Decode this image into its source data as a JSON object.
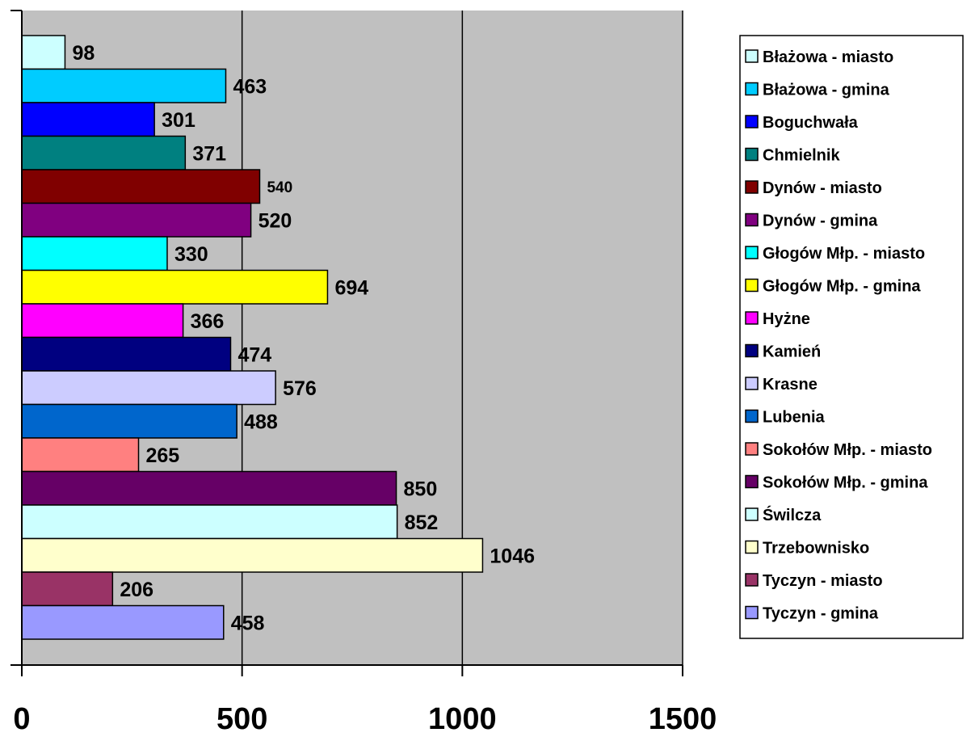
{
  "chart_data": {
    "type": "bar",
    "orientation": "horizontal",
    "title": "",
    "xlabel": "",
    "ylabel": "",
    "xlim": [
      0,
      1500
    ],
    "x_ticks": [
      "0",
      "500",
      "1000",
      "1500"
    ],
    "grid": true,
    "plot_background": "#c0c0c0",
    "legend_position": "right",
    "series": [
      {
        "name": "Błażowa - miasto",
        "value": 98,
        "label": "98",
        "color": "#ccffff"
      },
      {
        "name": "Błażowa - gmina",
        "value": 463,
        "label": "463",
        "color": "#00ccff"
      },
      {
        "name": "Boguchwała",
        "value": 301,
        "label": "301",
        "color": "#0000ff"
      },
      {
        "name": "Chmielnik",
        "value": 371,
        "label": "371",
        "color": "#008080"
      },
      {
        "name": "Dynów - miasto",
        "value": 540,
        "label": "540",
        "color": "#800000"
      },
      {
        "name": "Dynów - gmina",
        "value": 520,
        "label": "520",
        "color": "#800080"
      },
      {
        "name": "Głogów Młp. - miasto",
        "value": 330,
        "label": "330",
        "color": "#00ffff"
      },
      {
        "name": "Głogów Młp. - gmina",
        "value": 694,
        "label": "694",
        "color": "#ffff00"
      },
      {
        "name": "Hyżne",
        "value": 366,
        "label": "366",
        "color": "#ff00ff"
      },
      {
        "name": "Kamień",
        "value": 474,
        "label": "474",
        "color": "#000080"
      },
      {
        "name": "Krasne",
        "value": 576,
        "label": "576",
        "color": "#ccccff"
      },
      {
        "name": "Lubenia",
        "value": 488,
        "label": "488",
        "color": "#0066cc"
      },
      {
        "name": "Sokołów Młp. - miasto",
        "value": 265,
        "label": "265",
        "color": "#ff8080"
      },
      {
        "name": "Sokołów Młp. - gmina",
        "value": 850,
        "label": "850",
        "color": "#660066"
      },
      {
        "name": "Świlcza",
        "value": 852,
        "label": "852",
        "color": "#ccffff"
      },
      {
        "name": "Trzebownisko",
        "value": 1046,
        "label": "1046",
        "color": "#ffffcc"
      },
      {
        "name": "Tyczyn - miasto",
        "value": 206,
        "label": "206",
        "color": "#993366"
      },
      {
        "name": "Tyczyn - gmina",
        "value": 458,
        "label": "458",
        "color": "#9999ff"
      }
    ]
  }
}
